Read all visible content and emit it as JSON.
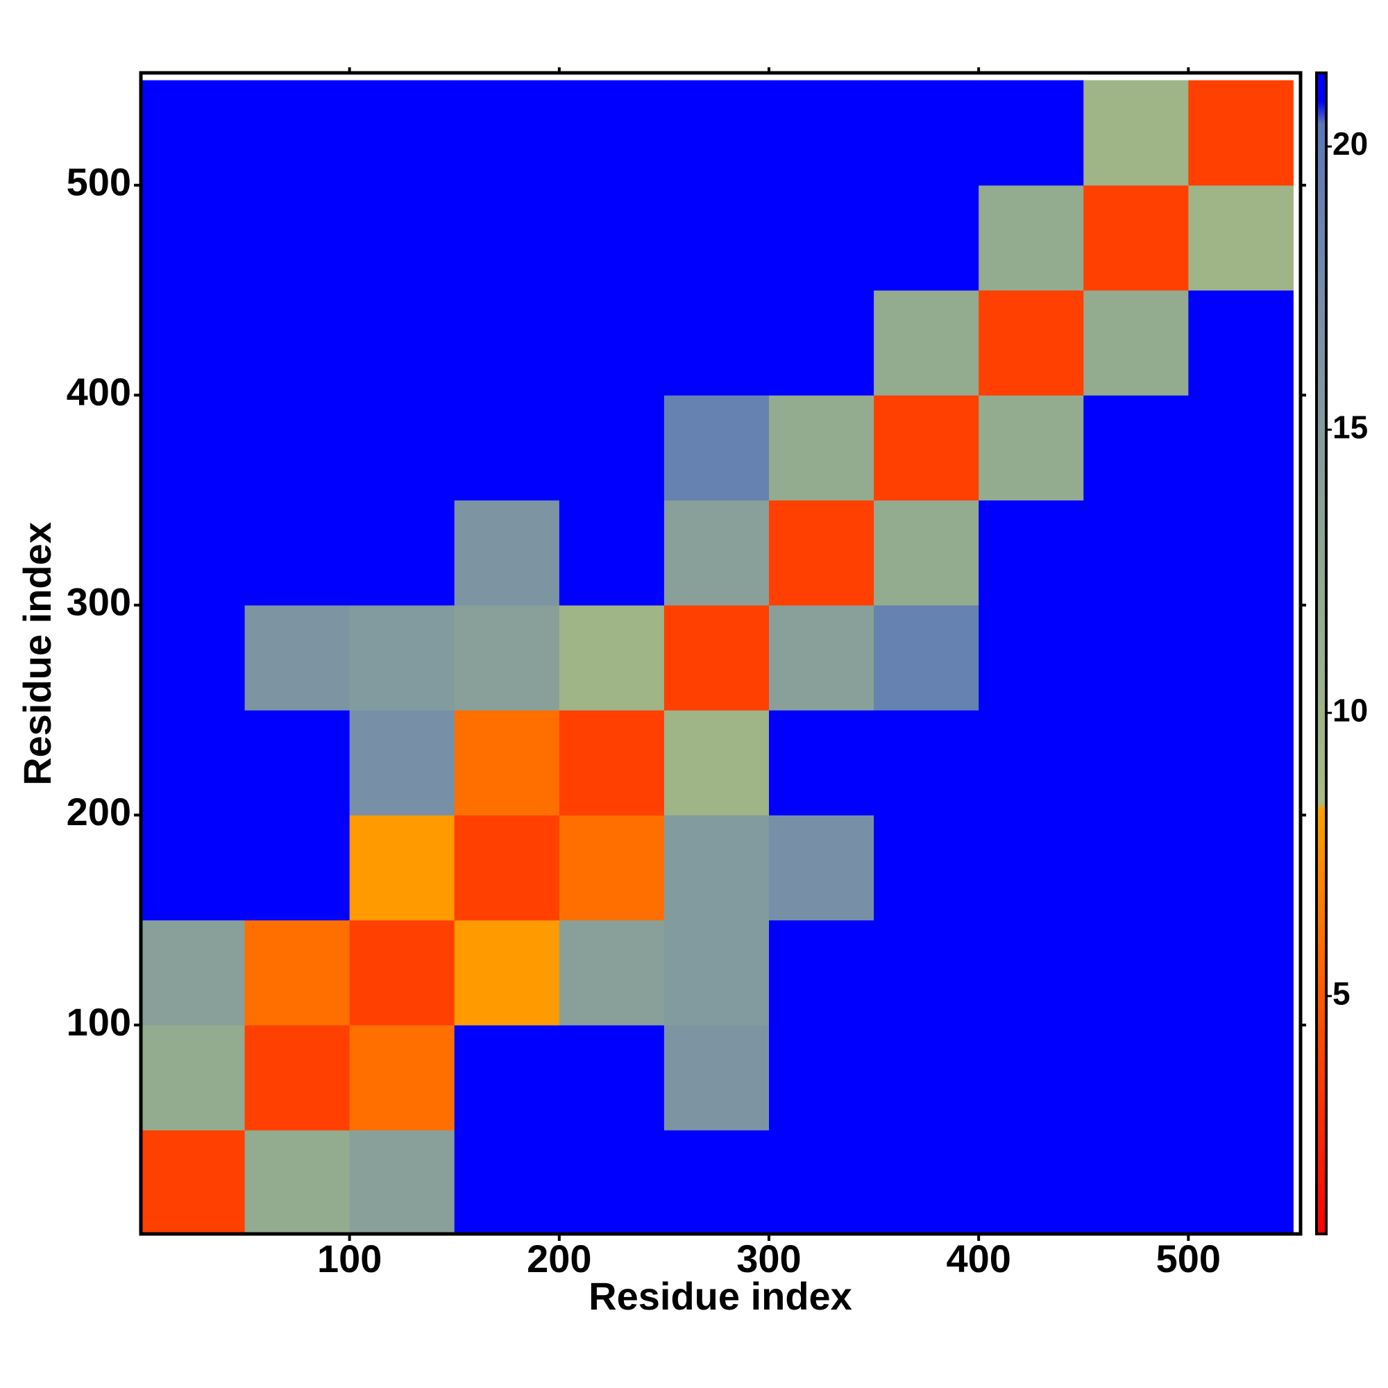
{
  "chart_data": {
    "type": "heatmap",
    "xlabel": "Residue index",
    "ylabel": "Residue index",
    "xlim": [
      0.5,
      553.5
    ],
    "ylim": [
      0.5,
      553.5
    ],
    "xticks": [
      100,
      200,
      300,
      400,
      500
    ],
    "yticks": [
      100,
      200,
      300,
      400,
      500
    ],
    "xbins": [
      0,
      50,
      100,
      150,
      200,
      250,
      300,
      350,
      400,
      450,
      500,
      550
    ],
    "ybins": [
      0,
      50,
      100,
      150,
      200,
      250,
      300,
      350,
      400,
      450,
      500,
      550
    ],
    "z": [
      [
        3.8,
        12,
        14,
        21,
        21,
        21,
        21,
        21,
        21,
        21,
        21
      ],
      [
        12,
        3.8,
        6,
        21,
        21,
        16,
        21,
        21,
        21,
        21,
        21
      ],
      [
        14,
        6,
        3.8,
        8,
        14,
        15,
        21,
        21,
        21,
        21,
        21
      ],
      [
        21,
        21,
        8,
        3.8,
        6,
        15,
        17,
        21,
        21,
        21,
        21
      ],
      [
        21,
        21,
        17,
        6,
        3.8,
        10,
        21,
        21,
        21,
        21,
        21
      ],
      [
        21,
        16,
        15,
        14,
        10,
        3.8,
        14,
        19,
        21,
        21,
        21
      ],
      [
        21,
        21,
        21,
        16,
        21,
        14,
        3.8,
        12,
        21,
        21,
        21
      ],
      [
        21,
        21,
        21,
        21,
        21,
        19,
        12,
        3.8,
        12,
        21,
        21
      ],
      [
        21,
        21,
        21,
        21,
        21,
        21,
        21,
        12,
        3.8,
        12,
        21
      ],
      [
        21,
        21,
        21,
        21,
        21,
        21,
        21,
        21,
        12,
        3.8,
        10
      ],
      [
        21,
        21,
        21,
        21,
        21,
        21,
        21,
        21,
        21,
        10,
        3.8
      ]
    ],
    "zlim": [
      0.8,
      21.3
    ],
    "zticks": [
      5,
      10,
      15,
      20
    ],
    "colorscale": [
      [
        0.8,
        "#ff0000"
      ],
      [
        5,
        "#ff5a00"
      ],
      [
        8.3,
        "#ffa000"
      ],
      [
        8.4,
        "#a9bb80"
      ],
      [
        12,
        "#93ab8f"
      ],
      [
        17,
        "#7790a8"
      ],
      [
        20.4,
        "#5a78b8"
      ],
      [
        20.8,
        "#0000ff"
      ],
      [
        21.3,
        "#0000ff"
      ]
    ]
  }
}
